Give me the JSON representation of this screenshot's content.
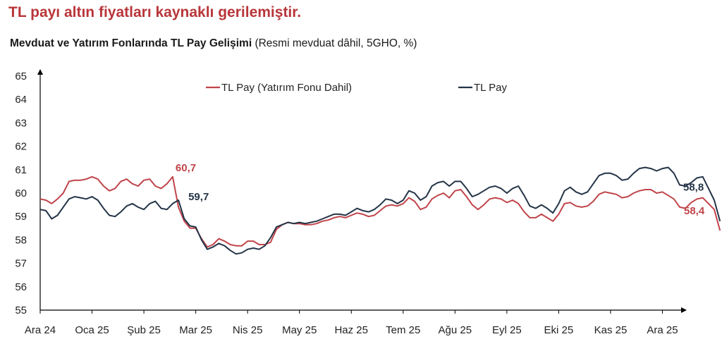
{
  "headline": "TL payı altın fiyatları kaynaklı gerilemiştir.",
  "subtitle_bold": "Mevduat ve Yatırım Fonlarında TL Pay Gelişimi",
  "subtitle_rest": " (Resmi mevduat dâhil, 5GHO, %)",
  "chart_data": {
    "type": "line",
    "title": "Mevduat ve Yatırım Fonlarında TL Pay Gelişimi",
    "ylim": [
      55,
      65
    ],
    "yticks": [
      "55",
      "56",
      "57",
      "58",
      "59",
      "60",
      "61",
      "62",
      "63",
      "64",
      "65"
    ],
    "xlim": [
      0,
      111
    ],
    "xticks": [
      {
        "label": "Ara 24",
        "x": 0
      },
      {
        "label": "Oca 25",
        "x": 9
      },
      {
        "label": "Şub 25",
        "x": 18
      },
      {
        "label": "Mar 25",
        "x": 27
      },
      {
        "label": "Nis 25",
        "x": 36
      },
      {
        "label": "May 25",
        "x": 45
      },
      {
        "label": "Haz 25",
        "x": 54
      },
      {
        "label": "Tem 25",
        "x": 63
      },
      {
        "label": "Ağu 25",
        "x": 72
      },
      {
        "label": "Eyl 25",
        "x": 81
      },
      {
        "label": "Eki 25",
        "x": 90
      },
      {
        "label": "Kas 25",
        "x": 99
      },
      {
        "label": "Ara 25",
        "x": 108
      }
    ],
    "series": [
      {
        "name": "TL Pay (Yatırım Fonu Dahil)",
        "color": "#c0444a",
        "values": [
          59.75,
          59.7,
          59.55,
          59.75,
          60.0,
          60.5,
          60.55,
          60.55,
          60.6,
          60.7,
          60.6,
          60.3,
          60.1,
          60.2,
          60.5,
          60.6,
          60.4,
          60.3,
          60.55,
          60.6,
          60.3,
          60.2,
          60.4,
          60.7,
          59.4,
          58.8,
          58.5,
          58.5,
          58.05,
          57.7,
          57.8,
          58.05,
          57.95,
          57.8,
          57.75,
          57.75,
          57.95,
          57.95,
          57.8,
          57.8,
          57.9,
          58.45,
          58.65,
          58.75,
          58.7,
          58.7,
          58.65,
          58.65,
          58.7,
          58.8,
          58.85,
          58.95,
          59.0,
          58.95,
          59.05,
          59.15,
          59.1,
          59.0,
          59.05,
          59.25,
          59.45,
          59.5,
          59.45,
          59.55,
          59.8,
          59.65,
          59.3,
          59.4,
          59.75,
          59.9,
          60.0,
          59.8,
          60.1,
          60.15,
          59.85,
          59.5,
          59.3,
          59.5,
          59.75,
          59.8,
          59.75,
          59.6,
          59.7,
          59.55,
          59.2,
          58.95,
          58.95,
          59.1,
          58.95,
          58.8,
          59.1,
          59.55,
          59.6,
          59.45,
          59.4,
          59.45,
          59.65,
          59.95,
          60.05,
          60.0,
          59.95,
          59.8,
          59.85,
          60.0,
          60.1,
          60.15,
          60.15,
          60.0,
          60.05,
          59.9,
          59.75,
          59.4,
          59.35,
          59.6,
          59.75,
          59.8,
          59.55,
          59.3,
          58.4
        ]
      },
      {
        "name": "TL Pay",
        "color": "#243447",
        "values": [
          59.3,
          59.25,
          58.9,
          59.05,
          59.4,
          59.75,
          59.85,
          59.8,
          59.75,
          59.85,
          59.7,
          59.35,
          59.05,
          59.0,
          59.2,
          59.45,
          59.55,
          59.4,
          59.3,
          59.55,
          59.65,
          59.35,
          59.3,
          59.55,
          59.7,
          58.9,
          58.6,
          58.55,
          58.0,
          57.6,
          57.7,
          57.85,
          57.75,
          57.55,
          57.4,
          57.45,
          57.6,
          57.65,
          57.6,
          57.75,
          58.1,
          58.55,
          58.65,
          58.75,
          58.7,
          58.75,
          58.7,
          58.75,
          58.8,
          58.9,
          59.0,
          59.1,
          59.1,
          59.05,
          59.2,
          59.35,
          59.25,
          59.2,
          59.3,
          59.5,
          59.75,
          59.7,
          59.55,
          59.7,
          60.1,
          60.0,
          59.7,
          59.85,
          60.3,
          60.45,
          60.5,
          60.3,
          60.5,
          60.5,
          60.2,
          59.85,
          59.95,
          60.1,
          60.25,
          60.3,
          60.2,
          60.0,
          60.2,
          60.3,
          59.9,
          59.45,
          59.35,
          59.5,
          59.35,
          59.15,
          59.55,
          60.1,
          60.25,
          60.05,
          59.95,
          60.05,
          60.4,
          60.75,
          60.85,
          60.85,
          60.75,
          60.55,
          60.6,
          60.85,
          61.05,
          61.1,
          61.05,
          60.95,
          61.05,
          61.1,
          60.85,
          60.35,
          60.3,
          60.45,
          60.65,
          60.7,
          60.2,
          59.7,
          58.8
        ]
      }
    ],
    "annotations": [
      {
        "text": "60,7",
        "series": 0,
        "x": 23
      },
      {
        "text": "59,7",
        "series": 1,
        "x": 24
      },
      {
        "text": "58,8",
        "series": 1,
        "x": 111
      },
      {
        "text": "58,4",
        "series": 0,
        "x": 111
      }
    ],
    "legend_position": "top",
    "grid": false
  }
}
